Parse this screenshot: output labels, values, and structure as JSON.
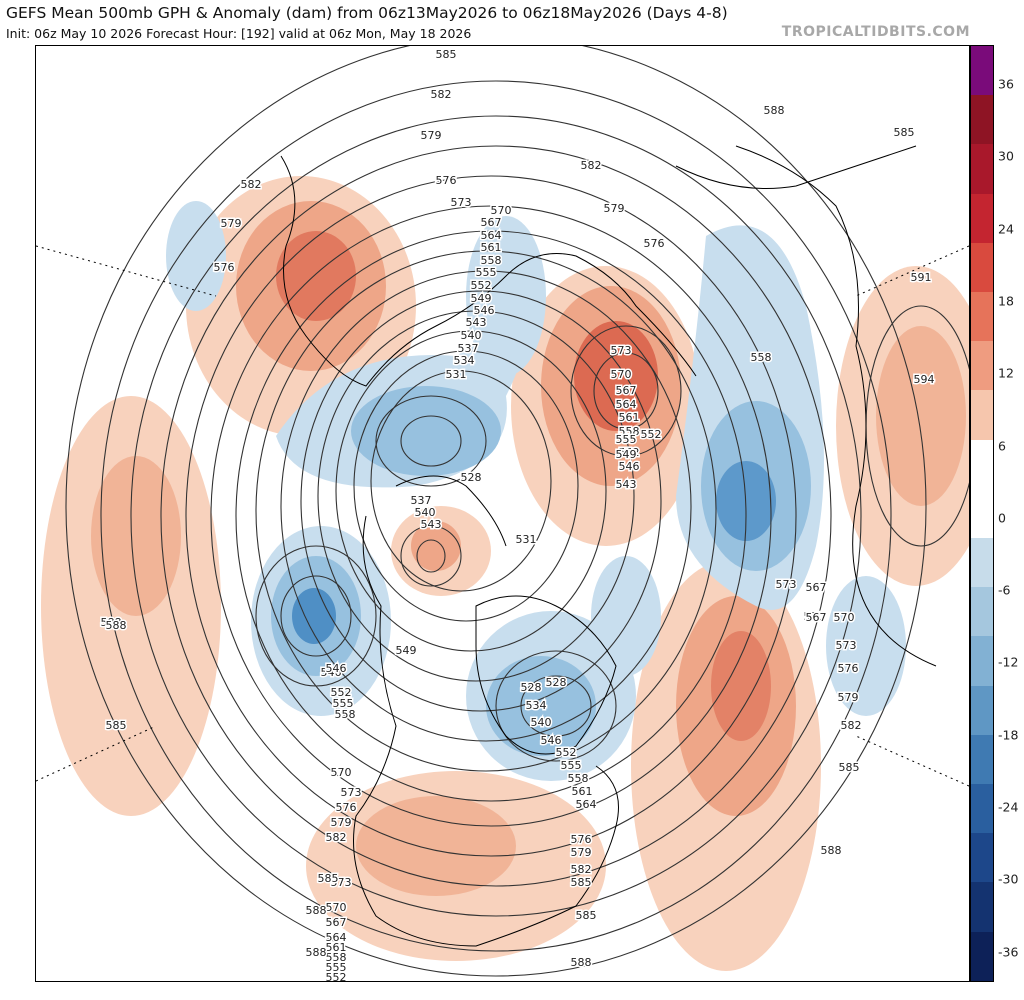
{
  "header": {
    "title": "GEFS Mean 500mb GPH & Anomaly (dam) from 06z13May2026 to 06z18May2026 (Days 4-8)",
    "subtitle": "Init: 06z May 10 2026   Forecast Hour: [192]   valid at 06z Mon, May 18 2026",
    "credit": "TROPICALTIDBITS.COM"
  },
  "colorbar": {
    "ticks": [
      "36",
      "30",
      "24",
      "18",
      "12",
      "6",
      "0",
      "-6",
      "-12",
      "-18",
      "-24",
      "-30",
      "-36"
    ],
    "colors": [
      "#7a0b7a",
      "#8e1424",
      "#a9182b",
      "#c42530",
      "#d94a3e",
      "#e6735a",
      "#ef9c80",
      "#f6c6ad",
      "#ffffff",
      "#ffffff",
      "#c7dcea",
      "#a5c7de",
      "#82b1d3",
      "#5f97c4",
      "#3f7ab2",
      "#2a5f9f",
      "#1d478a",
      "#143370",
      "#0d2158"
    ],
    "anomaly_colors": {
      "warm_light": "#f8d2bd",
      "warm_mid": "#eea688",
      "warm_strong": "#dc6a52",
      "cold_light": "#c8deee",
      "cold_mid": "#97c1df",
      "cold_strong": "#4f8fc5"
    }
  },
  "map": {
    "contour_labels": [
      {
        "text": "585"
      },
      {
        "text": "582"
      },
      {
        "text": "579"
      },
      {
        "text": "576"
      },
      {
        "text": "573"
      },
      {
        "text": "570"
      },
      {
        "text": "567"
      },
      {
        "text": "564"
      },
      {
        "text": "561"
      },
      {
        "text": "558"
      },
      {
        "text": "555"
      },
      {
        "text": "552"
      },
      {
        "text": "549"
      },
      {
        "text": "546"
      },
      {
        "text": "543"
      },
      {
        "text": "540"
      },
      {
        "text": "537"
      },
      {
        "text": "534"
      },
      {
        "text": "531"
      },
      {
        "text": "528"
      },
      {
        "text": "588"
      },
      {
        "text": "585"
      },
      {
        "text": "582"
      },
      {
        "text": "579"
      },
      {
        "text": "576"
      },
      {
        "text": "573"
      },
      {
        "text": "570"
      },
      {
        "text": "567"
      },
      {
        "text": "564"
      },
      {
        "text": "561"
      },
      {
        "text": "558"
      },
      {
        "text": "555"
      },
      {
        "text": "552"
      },
      {
        "text": "549"
      },
      {
        "text": "546"
      },
      {
        "text": "543"
      },
      {
        "text": "540"
      },
      {
        "text": "537"
      },
      {
        "text": "531"
      },
      {
        "text": "528"
      },
      {
        "text": "573"
      },
      {
        "text": "570"
      },
      {
        "text": "567"
      },
      {
        "text": "564"
      },
      {
        "text": "561"
      },
      {
        "text": "558"
      },
      {
        "text": "555"
      },
      {
        "text": "552"
      },
      {
        "text": "549"
      },
      {
        "text": "546"
      },
      {
        "text": "543"
      },
      {
        "text": "588"
      },
      {
        "text": "591"
      },
      {
        "text": "594"
      },
      {
        "text": "585"
      },
      {
        "text": "582"
      },
      {
        "text": "579"
      },
      {
        "text": "576"
      },
      {
        "text": "573"
      },
      {
        "text": "570"
      },
      {
        "text": "567"
      },
      {
        "text": "588"
      },
      {
        "text": "585"
      },
      {
        "text": "582"
      },
      {
        "text": "579"
      },
      {
        "text": "576"
      },
      {
        "text": "573"
      },
      {
        "text": "570"
      },
      {
        "text": "567"
      },
      {
        "text": "564"
      },
      {
        "text": "561"
      },
      {
        "text": "558"
      },
      {
        "text": "555"
      },
      {
        "text": "552"
      },
      {
        "text": "546"
      },
      {
        "text": "540"
      },
      {
        "text": "534"
      },
      {
        "text": "528"
      },
      {
        "text": "588"
      },
      {
        "text": "585"
      },
      {
        "text": "582"
      },
      {
        "text": "579"
      },
      {
        "text": "576"
      },
      {
        "text": "573"
      },
      {
        "text": "570"
      },
      {
        "text": "549"
      },
      {
        "text": "552"
      },
      {
        "text": "555"
      },
      {
        "text": "558"
      },
      {
        "text": "546"
      },
      {
        "text": "588"
      },
      {
        "text": "585"
      },
      {
        "text": "588"
      },
      {
        "text": "585"
      },
      {
        "text": "582"
      },
      {
        "text": "579"
      },
      {
        "text": "576"
      },
      {
        "text": "558"
      },
      {
        "text": "552"
      },
      {
        "text": "588"
      }
    ]
  }
}
